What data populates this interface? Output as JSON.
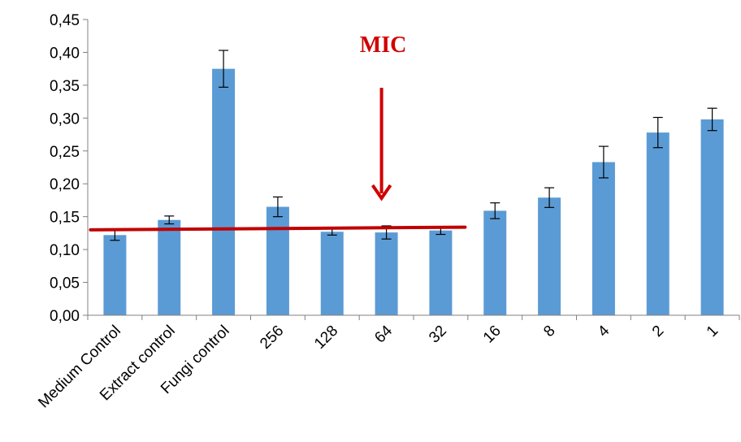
{
  "chart_data": {
    "type": "bar",
    "categories": [
      "Medium Control",
      "Extract control",
      "Fungi control",
      "256",
      "128",
      "64",
      "32",
      "16",
      "8",
      "4",
      "2",
      "1"
    ],
    "values": [
      0.122,
      0.145,
      0.375,
      0.165,
      0.127,
      0.126,
      0.129,
      0.159,
      0.179,
      0.233,
      0.278,
      0.298
    ],
    "errors": [
      0.008,
      0.006,
      0.028,
      0.015,
      0.005,
      0.01,
      0.006,
      0.012,
      0.015,
      0.024,
      0.023,
      0.017
    ],
    "ylim": [
      0,
      0.45
    ],
    "yticks": [
      "0,00",
      "0,05",
      "0,10",
      "0,15",
      "0,20",
      "0,25",
      "0,30",
      "0,35",
      "0,40",
      "0,45"
    ],
    "grid": false,
    "bar_color": "#5b9bd5",
    "annotation": {
      "text": "MIC",
      "color": "#d00000",
      "category": "64"
    },
    "threshold_line": {
      "color": "#c00000",
      "y_start": 0.13,
      "y_end": 0.134,
      "from_category": "Medium Control",
      "to_category": "32"
    }
  }
}
